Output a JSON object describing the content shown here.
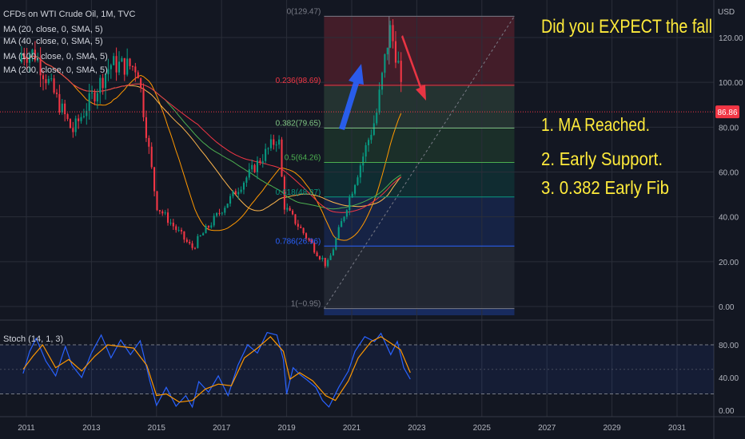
{
  "chart_data": [
    {
      "type": "candlestick",
      "symbol_label": "CFDs on WTI Crude Oil, 1M, TVC",
      "currency": "USD",
      "y_range": [
        -5,
        140
      ],
      "x_range": [
        2010.8,
        2032.2
      ],
      "price_axis_ticks": [
        "120.00",
        "100.00",
        "80.00",
        "60.00",
        "40.00",
        "20.00",
        "0.00"
      ],
      "time_axis_ticks": [
        "2011",
        "2013",
        "2015",
        "2017",
        "2019",
        "2021",
        "2023",
        "2025",
        "2027",
        "2029",
        "2031"
      ],
      "last_price": {
        "label": "86.86",
        "value": 86.86,
        "color": "#f23645"
      },
      "moving_averages": [
        {
          "name": "MA (20, close, 0, SMA, 5)",
          "color": "#ff9800"
        },
        {
          "name": "MA (40, close, 0, SMA, 5)",
          "color": "#ffb74d"
        },
        {
          "name": "MA (100, close, 0, SMA, 5)",
          "color": "#4caf50"
        },
        {
          "name": "MA (200, close, 0, SMA, 5)",
          "color": "#f23645"
        }
      ],
      "key_points": [
        {
          "date": "2011-04",
          "price": 113
        },
        {
          "date": "2012-06",
          "price": 78
        },
        {
          "date": "2013-08",
          "price": 108
        },
        {
          "date": "2014-06",
          "price": 107
        },
        {
          "date": "2015-01",
          "price": 45
        },
        {
          "date": "2016-02",
          "price": 26
        },
        {
          "date": "2018-10",
          "price": 76
        },
        {
          "date": "2018-12",
          "price": 45
        },
        {
          "date": "2020-04",
          "price": 18
        },
        {
          "date": "2021-10",
          "price": 85
        },
        {
          "date": "2022-03",
          "price": 124
        },
        {
          "date": "2022-06",
          "price": 110
        },
        {
          "date": "2022-08",
          "price": 86.86
        }
      ],
      "fibonacci": {
        "levels": [
          {
            "label": "0(129.47)",
            "value": 129.47,
            "color": "#787b86"
          },
          {
            "label": "0.236(98.69)",
            "value": 98.69,
            "color": "#f23645"
          },
          {
            "label": "0.382(79.65)",
            "value": 79.65,
            "color": "#81c784"
          },
          {
            "label": "0.5(64.26)",
            "value": 64.26,
            "color": "#4caf50"
          },
          {
            "label": "0.618(48.87)",
            "value": 48.87,
            "color": "#089981"
          },
          {
            "label": "0.786(26.96)",
            "value": 26.96,
            "color": "#2962ff"
          },
          {
            "label": "1(−0.95)",
            "value": -0.95,
            "color": "#787b86"
          }
        ],
        "x_start": 2020.15,
        "x_end": 2026.0
      },
      "annotations": {
        "title": "Did you EXPECT the fall",
        "points": [
          "1. MA Reached.",
          "2. Early Support.",
          "3. 0.382 Early Fib"
        ],
        "annotation_color": "#ffeb3b"
      }
    },
    {
      "type": "line",
      "name": "Stoch (14, 1, 3)",
      "y_range": [
        0,
        100
      ],
      "axis_ticks": [
        "80.00",
        "40.00",
        "0.00"
      ],
      "band": [
        20,
        80
      ],
      "series": [
        {
          "color": "#2962ff",
          "points": [
            [
              2010.9,
              45
            ],
            [
              2011.1,
              72
            ],
            [
              2011.3,
              88
            ],
            [
              2011.6,
              60
            ],
            [
              2011.9,
              42
            ],
            [
              2012.2,
              78
            ],
            [
              2012.4,
              55
            ],
            [
              2012.7,
              40
            ],
            [
              2013.0,
              70
            ],
            [
              2013.3,
              92
            ],
            [
              2013.6,
              64
            ],
            [
              2013.9,
              86
            ],
            [
              2014.2,
              68
            ],
            [
              2014.5,
              85
            ],
            [
              2014.8,
              35
            ],
            [
              2015.0,
              6
            ],
            [
              2015.3,
              28
            ],
            [
              2015.6,
              5
            ],
            [
              2015.9,
              18
            ],
            [
              2016.1,
              4
            ],
            [
              2016.3,
              35
            ],
            [
              2016.6,
              22
            ],
            [
              2016.9,
              42
            ],
            [
              2017.2,
              18
            ],
            [
              2017.5,
              55
            ],
            [
              2017.8,
              80
            ],
            [
              2018.1,
              70
            ],
            [
              2018.4,
              95
            ],
            [
              2018.7,
              92
            ],
            [
              2018.9,
              62
            ],
            [
              2019.0,
              20
            ],
            [
              2019.2,
              52
            ],
            [
              2019.4,
              44
            ],
            [
              2019.6,
              38
            ],
            [
              2019.9,
              28
            ],
            [
              2020.1,
              12
            ],
            [
              2020.3,
              4
            ],
            [
              2020.6,
              28
            ],
            [
              2020.9,
              48
            ],
            [
              2021.1,
              72
            ],
            [
              2021.4,
              90
            ],
            [
              2021.7,
              84
            ],
            [
              2021.9,
              94
            ],
            [
              2022.2,
              68
            ],
            [
              2022.4,
              84
            ],
            [
              2022.6,
              52
            ],
            [
              2022.8,
              38
            ]
          ]
        },
        {
          "color": "#ff9800",
          "points": [
            [
              2010.9,
              50
            ],
            [
              2011.2,
              66
            ],
            [
              2011.5,
              80
            ],
            [
              2011.9,
              52
            ],
            [
              2012.3,
              62
            ],
            [
              2012.7,
              48
            ],
            [
              2013.1,
              66
            ],
            [
              2013.5,
              80
            ],
            [
              2013.9,
              78
            ],
            [
              2014.3,
              76
            ],
            [
              2014.7,
              55
            ],
            [
              2015.0,
              18
            ],
            [
              2015.3,
              20
            ],
            [
              2015.7,
              10
            ],
            [
              2016.1,
              12
            ],
            [
              2016.5,
              26
            ],
            [
              2016.9,
              32
            ],
            [
              2017.3,
              30
            ],
            [
              2017.7,
              64
            ],
            [
              2018.1,
              76
            ],
            [
              2018.5,
              90
            ],
            [
              2018.9,
              72
            ],
            [
              2019.1,
              38
            ],
            [
              2019.4,
              46
            ],
            [
              2019.8,
              36
            ],
            [
              2020.2,
              18
            ],
            [
              2020.5,
              12
            ],
            [
              2020.9,
              36
            ],
            [
              2021.2,
              64
            ],
            [
              2021.6,
              84
            ],
            [
              2021.9,
              90
            ],
            [
              2022.2,
              82
            ],
            [
              2022.5,
              74
            ],
            [
              2022.8,
              46
            ]
          ]
        }
      ]
    }
  ]
}
